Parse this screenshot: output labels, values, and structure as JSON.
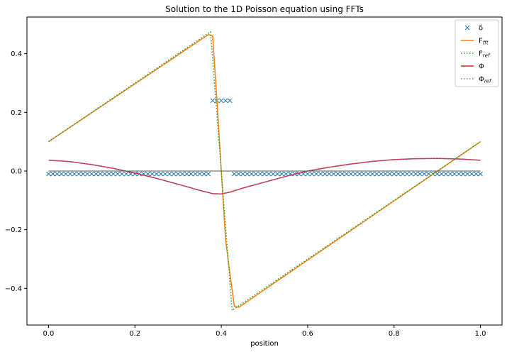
{
  "chart_data": {
    "type": "line",
    "title": "Solution to the 1D Poisson equation using FFTs",
    "xlabel": "position",
    "ylabel": "",
    "xlim": [
      -0.05,
      1.05
    ],
    "ylim": [
      -0.525,
      0.525
    ],
    "x_ticks": [
      "0.0",
      "0.2",
      "0.4",
      "0.6",
      "0.8",
      "1.0"
    ],
    "x_tick_values": [
      0.0,
      0.2,
      0.4,
      0.6,
      0.8,
      1.0
    ],
    "y_ticks": [
      "0.4",
      "0.2",
      "0.0",
      "−0.2",
      "−0.4"
    ],
    "y_tick_values": [
      0.4,
      0.2,
      0.0,
      -0.2,
      -0.4
    ],
    "grid": false,
    "legend_position": "top-right",
    "legend": [
      {
        "main": "δ",
        "sub": "",
        "style": "x-marker",
        "color": "#1f77b4"
      },
      {
        "main": "F",
        "sub": "fft",
        "style": "solid",
        "color": "#ff7f0e"
      },
      {
        "main": "F",
        "sub": "ref",
        "style": "dotted",
        "color": "#2ca02c"
      },
      {
        "main": "Φ",
        "sub": "",
        "style": "solid",
        "color": "#d62728"
      },
      {
        "main": "Φ",
        "sub": "ref",
        "style": "dotted",
        "color": "#9467bd"
      }
    ],
    "series": [
      {
        "key": "delta",
        "marker": "x",
        "color": "#1f77b4",
        "x": [
          0.0,
          0.01,
          0.02,
          0.03,
          0.04,
          0.05,
          0.06,
          0.07,
          0.08,
          0.09,
          0.1,
          0.11,
          0.12,
          0.13,
          0.14,
          0.15,
          0.16,
          0.17,
          0.18,
          0.19,
          0.2,
          0.21,
          0.22,
          0.23,
          0.24,
          0.25,
          0.26,
          0.27,
          0.28,
          0.29,
          0.3,
          0.31,
          0.32,
          0.33,
          0.34,
          0.35,
          0.36,
          0.37,
          0.38,
          0.39,
          0.4,
          0.41,
          0.42,
          0.43,
          0.44,
          0.45,
          0.46,
          0.47,
          0.48,
          0.49,
          0.5,
          0.51,
          0.52,
          0.53,
          0.54,
          0.55,
          0.56,
          0.57,
          0.58,
          0.59,
          0.6,
          0.61,
          0.62,
          0.63,
          0.64,
          0.65,
          0.66,
          0.67,
          0.68,
          0.69,
          0.7,
          0.71,
          0.72,
          0.73,
          0.74,
          0.75,
          0.76,
          0.77,
          0.78,
          0.79,
          0.8,
          0.81,
          0.82,
          0.83,
          0.84,
          0.85,
          0.86,
          0.87,
          0.88,
          0.89,
          0.9,
          0.91,
          0.92,
          0.93,
          0.94,
          0.95,
          0.96,
          0.97,
          0.98,
          0.99,
          1.0
        ],
        "y": [
          -0.01,
          -0.01,
          -0.01,
          -0.01,
          -0.01,
          -0.01,
          -0.01,
          -0.01,
          -0.01,
          -0.01,
          -0.01,
          -0.01,
          -0.01,
          -0.01,
          -0.01,
          -0.01,
          -0.01,
          -0.01,
          -0.01,
          -0.01,
          -0.01,
          -0.01,
          -0.01,
          -0.01,
          -0.01,
          -0.01,
          -0.01,
          -0.01,
          -0.01,
          -0.01,
          -0.01,
          -0.01,
          -0.01,
          -0.01,
          -0.01,
          -0.01,
          -0.01,
          -0.01,
          0.24,
          0.24,
          0.24,
          0.24,
          0.24,
          -0.01,
          -0.01,
          -0.01,
          -0.01,
          -0.01,
          -0.01,
          -0.01,
          -0.01,
          -0.01,
          -0.01,
          -0.01,
          -0.01,
          -0.01,
          -0.01,
          -0.01,
          -0.01,
          -0.01,
          -0.01,
          -0.01,
          -0.01,
          -0.01,
          -0.01,
          -0.01,
          -0.01,
          -0.01,
          -0.01,
          -0.01,
          -0.01,
          -0.01,
          -0.01,
          -0.01,
          -0.01,
          -0.01,
          -0.01,
          -0.01,
          -0.01,
          -0.01,
          -0.01,
          -0.01,
          -0.01,
          -0.01,
          -0.01,
          -0.01,
          -0.01,
          -0.01,
          -0.01,
          -0.01,
          -0.01,
          -0.01,
          -0.01,
          -0.01,
          -0.01,
          -0.01,
          -0.01,
          -0.01,
          -0.01,
          -0.01,
          -0.01
        ]
      },
      {
        "key": "F_fft",
        "style": "solid",
        "color": "#ff7f0e",
        "x": [
          0.0,
          0.37,
          0.38,
          0.385,
          0.39,
          0.4,
          0.41,
          0.42,
          0.43,
          0.44,
          1.0
        ],
        "y": [
          0.1,
          0.465,
          0.46,
          0.35,
          0.24,
          0.0,
          -0.235,
          -0.35,
          -0.46,
          -0.465,
          0.1
        ]
      },
      {
        "key": "F_ref",
        "style": "dotted",
        "color": "#2ca02c",
        "x": [
          0.0,
          0.375,
          0.425,
          1.0
        ],
        "y": [
          0.1,
          0.475,
          -0.475,
          0.1
        ]
      },
      {
        "key": "Phi",
        "style": "solid",
        "color": "#d62728",
        "x": [
          0.0,
          0.05,
          0.1,
          0.15,
          0.2,
          0.25,
          0.3,
          0.35,
          0.38,
          0.4,
          0.42,
          0.45,
          0.5,
          0.55,
          0.6,
          0.65,
          0.7,
          0.75,
          0.8,
          0.85,
          0.9,
          0.95,
          1.0
        ],
        "y": [
          0.037,
          0.032,
          0.022,
          0.009,
          -0.007,
          -0.025,
          -0.045,
          -0.066,
          -0.077,
          -0.078,
          -0.072,
          -0.058,
          -0.038,
          -0.018,
          0.0,
          0.013,
          0.024,
          0.033,
          0.039,
          0.042,
          0.043,
          0.041,
          0.037
        ]
      },
      {
        "key": "Phi_ref",
        "style": "dotted",
        "color": "#9467bd",
        "x": [
          0.0,
          0.05,
          0.1,
          0.15,
          0.2,
          0.25,
          0.3,
          0.35,
          0.38,
          0.4,
          0.42,
          0.45,
          0.5,
          0.55,
          0.6,
          0.65,
          0.7,
          0.75,
          0.8,
          0.85,
          0.9,
          0.95,
          1.0
        ],
        "y": [
          0.037,
          0.032,
          0.022,
          0.009,
          -0.007,
          -0.025,
          -0.045,
          -0.066,
          -0.077,
          -0.078,
          -0.072,
          -0.058,
          -0.038,
          -0.018,
          0.0,
          0.013,
          0.024,
          0.033,
          0.039,
          0.042,
          0.043,
          0.041,
          0.037
        ]
      },
      {
        "key": "zero_line",
        "style": "solid",
        "color": "#555555",
        "x": [
          0.0,
          1.0
        ],
        "y": [
          0.0,
          0.0
        ]
      }
    ]
  }
}
